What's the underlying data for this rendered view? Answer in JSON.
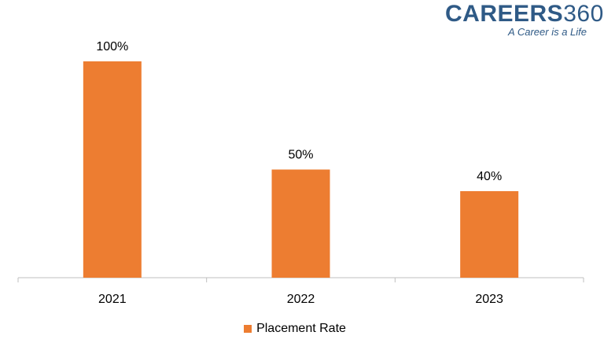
{
  "logo": {
    "brand": "CAREERS",
    "number": "360",
    "tagline": "A Career is a Life"
  },
  "colors": {
    "bar": "#ED7D31",
    "axis": "#BFBFBF",
    "text": "#000000",
    "brand": "#2F5A86"
  },
  "chart_data": {
    "type": "bar",
    "categories": [
      "2021",
      "2022",
      "2023"
    ],
    "series": [
      {
        "name": "Placement Rate",
        "values": [
          100,
          50,
          40
        ],
        "labels": [
          "100%",
          "50%",
          "40%"
        ]
      }
    ],
    "title": "",
    "xlabel": "",
    "ylabel": "",
    "ylim": [
      0,
      100
    ],
    "grid": false,
    "legend": "bottom"
  }
}
